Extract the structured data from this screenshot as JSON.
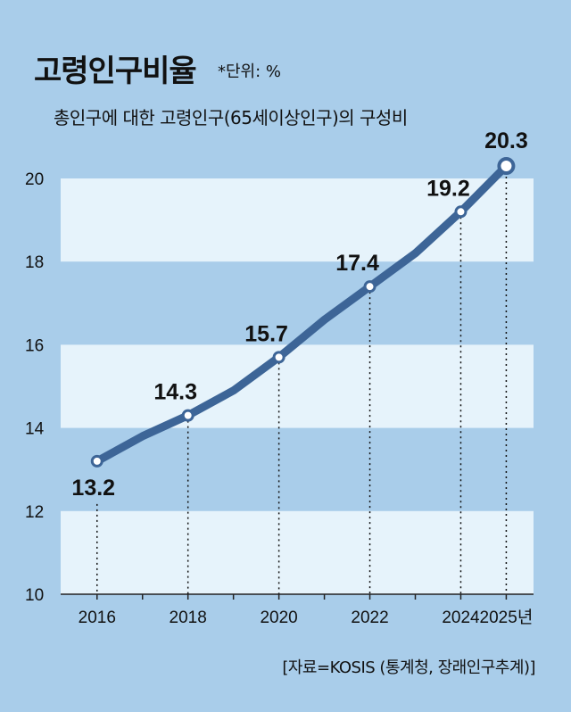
{
  "header": {
    "title": "고령인구비율",
    "unit": "*단위: %",
    "subtitle": "총인구에 대한 고령인구(65세이상인구)의 구성비"
  },
  "footer": {
    "source": "[자료=KOSIS (통계청, 장래인구추계)]"
  },
  "colors": {
    "background": "#a9cdea",
    "band": "#e6f3fb",
    "line": "#3d6597"
  },
  "chart_data": {
    "type": "line",
    "title": "고령인구비율",
    "subtitle": "총인구에 대한 고령인구(65세이상인구)의 구성비",
    "unit": "*단위: %",
    "xlabel": "",
    "ylabel": "",
    "ylim": [
      10,
      20
    ],
    "yticks": [
      10,
      12,
      14,
      16,
      18,
      20
    ],
    "xlim": [
      2015.2,
      2025.6
    ],
    "x_ticks": [
      {
        "x": 2016,
        "label": "2016"
      },
      {
        "x": 2018,
        "label": "2018"
      },
      {
        "x": 2020,
        "label": "2020"
      },
      {
        "x": 2022,
        "label": "2022"
      },
      {
        "x": 2024,
        "label": "2024"
      },
      {
        "x": 2025,
        "label": "2025년"
      }
    ],
    "grid": "horizontal bands",
    "series": [
      {
        "values": [
          {
            "x": 2016,
            "y": 13.2
          },
          {
            "x": 2017,
            "y": 13.8
          },
          {
            "x": 2018,
            "y": 14.3
          },
          {
            "x": 2019,
            "y": 14.9
          },
          {
            "x": 2020,
            "y": 15.7
          },
          {
            "x": 2021,
            "y": 16.6
          },
          {
            "x": 2022,
            "y": 17.4
          },
          {
            "x": 2023,
            "y": 18.2
          },
          {
            "x": 2024,
            "y": 19.2
          },
          {
            "x": 2025,
            "y": 20.3
          }
        ],
        "labeled_points": [
          {
            "x": 2016,
            "y": 13.2,
            "label": "13.2"
          },
          {
            "x": 2018,
            "y": 14.3,
            "label": "14.3"
          },
          {
            "x": 2020,
            "y": 15.7,
            "label": "15.7"
          },
          {
            "x": 2022,
            "y": 17.4,
            "label": "17.4"
          },
          {
            "x": 2024,
            "y": 19.2,
            "label": "19.2"
          },
          {
            "x": 2025,
            "y": 20.3,
            "label": "20.3"
          }
        ]
      }
    ]
  }
}
